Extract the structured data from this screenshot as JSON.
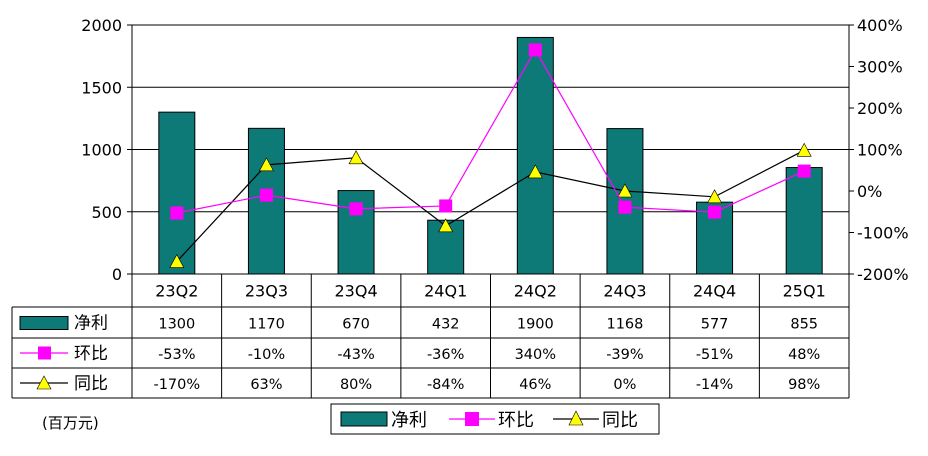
{
  "chart_data": {
    "type": "bar",
    "categories": [
      "23Q2",
      "23Q3",
      "23Q4",
      "24Q1",
      "24Q2",
      "24Q3",
      "24Q4",
      "25Q1"
    ],
    "series": [
      {
        "name": "净利",
        "type": "bar",
        "axis": "left",
        "values": [
          1300,
          1170,
          670,
          432,
          1900,
          1168,
          577,
          855
        ],
        "color": "#0e7a78"
      },
      {
        "name": "环比",
        "type": "line",
        "axis": "right",
        "marker": "square",
        "values": [
          -53,
          -10,
          -43,
          -36,
          340,
          -39,
          -51,
          48
        ],
        "color": "#ff00ff"
      },
      {
        "name": "同比",
        "type": "line",
        "axis": "right",
        "marker": "triangle",
        "values": [
          -170,
          63,
          80,
          -84,
          46,
          0,
          -14,
          98
        ],
        "color": "#ffff00",
        "line_color": "#000000"
      }
    ],
    "left_axis": {
      "min": 0,
      "max": 2000,
      "ticks": [
        "0",
        "500",
        "1000",
        "1500",
        "2000"
      ]
    },
    "right_axis": {
      "min": -200,
      "max": 400,
      "ticks": [
        "-200%",
        "-100%",
        "0%",
        "100%",
        "200%",
        "300%",
        "400%"
      ]
    },
    "table": {
      "rows": [
        {
          "label": "净利",
          "cells": [
            "1300",
            "1170",
            "670",
            "432",
            "1900",
            "1168",
            "577",
            "855"
          ]
        },
        {
          "label": "环比",
          "cells": [
            "-53%",
            "-10%",
            "-43%",
            "-36%",
            "340%",
            "-39%",
            "-51%",
            "48%"
          ]
        },
        {
          "label": "同比",
          "cells": [
            "-170%",
            "63%",
            "80%",
            "-84%",
            "46%",
            "0%",
            "-14%",
            "98%"
          ]
        }
      ]
    },
    "unit_label": "(百万元)",
    "legend": {
      "placement": "bottom",
      "items": [
        "净利",
        "环比",
        "同比"
      ]
    },
    "grid": true
  }
}
